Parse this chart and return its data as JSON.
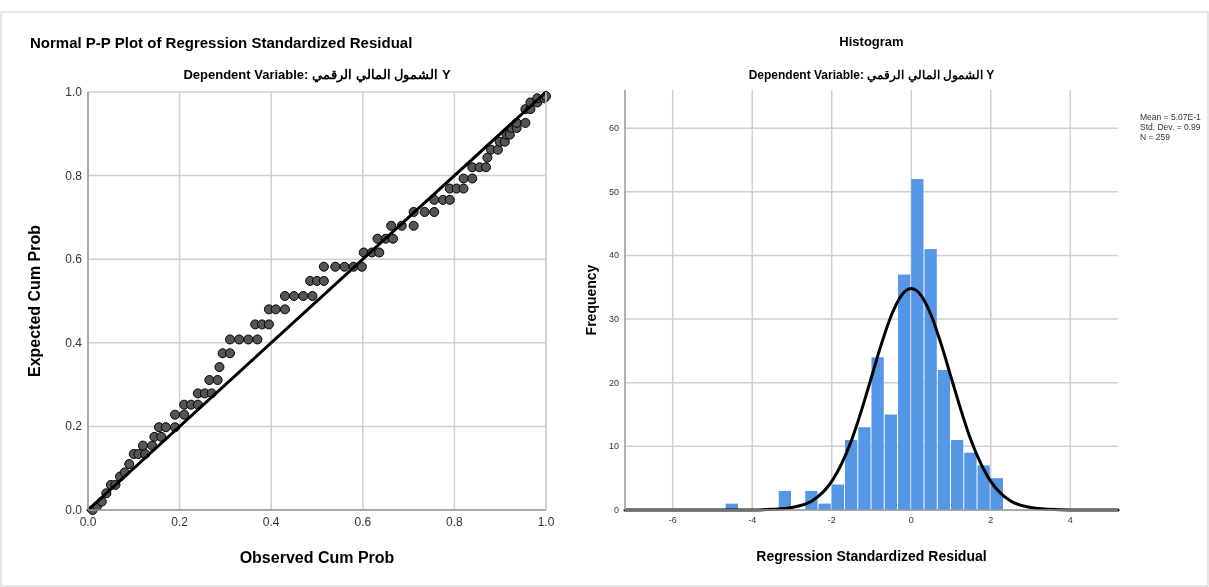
{
  "chart_data": [
    {
      "type": "scatter",
      "title": "Normal P-P Plot of Regression Standardized Residual",
      "subtitle": "Dependent Variable: الشمول المالي الرقمي Y",
      "xlabel": "Observed Cum Prob",
      "ylabel": "Expected Cum Prob",
      "xlim": [
        0,
        1
      ],
      "ylim": [
        0,
        1
      ],
      "xticks": [
        {
          "value": 0,
          "label": "0.0"
        },
        {
          "value": 0.2,
          "label": "0.2"
        },
        {
          "value": 0.4,
          "label": "0.4"
        },
        {
          "value": 0.6,
          "label": "0.6"
        },
        {
          "value": 0.8,
          "label": "0.8"
        },
        {
          "value": 1,
          "label": "1.0"
        }
      ],
      "yticks": [
        {
          "value": 0,
          "label": "0.0"
        },
        {
          "value": 0.2,
          "label": "0.2"
        },
        {
          "value": 0.4,
          "label": "0.4"
        },
        {
          "value": 0.6,
          "label": "0.6"
        },
        {
          "value": 0.8,
          "label": "0.8"
        },
        {
          "value": 1,
          "label": "1.0"
        }
      ],
      "grid": true,
      "series": [
        {
          "marker": "circle",
          "color": "#555555",
          "x": [
            0.01,
            0.02,
            0.03,
            0.04,
            0.05,
            0.06,
            0.07,
            0.08,
            0.09,
            0.1,
            0.11,
            0.125,
            0.12,
            0.14,
            0.145,
            0.16,
            0.155,
            0.17,
            0.19,
            0.19,
            0.21,
            0.21,
            0.225,
            0.24,
            0.24,
            0.255,
            0.27,
            0.265,
            0.283,
            0.287,
            0.294,
            0.31,
            0.31,
            0.33,
            0.35,
            0.37,
            0.365,
            0.38,
            0.395,
            0.395,
            0.41,
            0.43,
            0.43,
            0.45,
            0.47,
            0.49,
            0.485,
            0.5,
            0.515,
            0.515,
            0.54,
            0.56,
            0.58,
            0.598,
            0.602,
            0.62,
            0.636,
            0.632,
            0.65,
            0.666,
            0.662,
            0.685,
            0.711,
            0.711,
            0.735,
            0.756,
            0.756,
            0.775,
            0.79,
            0.79,
            0.805,
            0.82,
            0.82,
            0.839,
            0.839,
            0.855,
            0.869,
            0.872,
            0.88,
            0.895,
            0.899,
            0.91,
            0.914,
            0.921,
            0.925,
            0.936,
            0.936,
            0.955,
            0.955,
            0.966,
            0.966,
            0.981,
            0.981,
            0.996,
            1.0
          ],
          "values": [
            0.0,
            0.01,
            0.02,
            0.04,
            0.06,
            0.06,
            0.08,
            0.09,
            0.11,
            0.134,
            0.134,
            0.134,
            0.154,
            0.154,
            0.175,
            0.175,
            0.198,
            0.198,
            0.198,
            0.228,
            0.228,
            0.252,
            0.252,
            0.252,
            0.279,
            0.279,
            0.279,
            0.311,
            0.311,
            0.342,
            0.375,
            0.375,
            0.408,
            0.408,
            0.408,
            0.408,
            0.444,
            0.444,
            0.444,
            0.48,
            0.48,
            0.48,
            0.512,
            0.512,
            0.512,
            0.512,
            0.548,
            0.548,
            0.548,
            0.582,
            0.582,
            0.582,
            0.582,
            0.582,
            0.616,
            0.616,
            0.616,
            0.649,
            0.649,
            0.649,
            0.68,
            0.68,
            0.68,
            0.713,
            0.713,
            0.713,
            0.742,
            0.742,
            0.742,
            0.769,
            0.769,
            0.769,
            0.793,
            0.793,
            0.82,
            0.82,
            0.82,
            0.843,
            0.862,
            0.862,
            0.881,
            0.881,
            0.898,
            0.898,
            0.914,
            0.914,
            0.926,
            0.926,
            0.959,
            0.959,
            0.975,
            0.975,
            0.985,
            0.985,
            0.99
          ]
        },
        {
          "type": "line",
          "color": "#000000",
          "x": [
            0,
            1
          ],
          "values": [
            0,
            1
          ]
        }
      ]
    },
    {
      "type": "histogram",
      "title": "Histogram",
      "subtitle": "Dependent Variable: الشمول المالي الرقمي Y",
      "xlabel": "Regression Standardized Residual",
      "ylabel": "Frequency",
      "annotations": [
        "Mean = 5.07E-1",
        "Std. Dev. = 0.99",
        "N = 259"
      ],
      "xlim": [
        -7.2,
        5.2
      ],
      "ylim": [
        0,
        66
      ],
      "xticks": [
        -6,
        -4,
        -2,
        0,
        2,
        4
      ],
      "yticks": [
        0,
        10,
        20,
        30,
        40,
        50,
        60
      ],
      "grid": true,
      "bins": [
        -4.667,
        -4.333,
        -4,
        -3.667,
        -3.333,
        -3,
        -2.667,
        -2.333,
        -2,
        -1.667,
        -1.333,
        -1,
        -0.667,
        -0.333,
        0,
        0.333,
        0.667,
        1,
        1.333,
        1.667,
        2,
        2.333
      ],
      "series": [
        {
          "color": "#5596e6",
          "values": [
            1,
            0,
            0,
            0,
            3,
            0,
            3,
            1,
            4,
            11,
            13,
            24,
            15,
            37,
            52,
            41,
            22,
            11,
            9,
            7,
            5
          ]
        },
        {
          "type": "line",
          "color": "#000000",
          "x": [
            -7.2,
            -4,
            -3.5,
            -3,
            -2.5,
            -2,
            -1.75,
            -1.5,
            -1.25,
            -1,
            -0.75,
            -0.5,
            -0.25,
            0,
            0.25,
            0.5,
            0.75,
            1,
            1.25,
            1.5,
            1.75,
            2,
            2.5,
            3,
            3.5,
            4,
            5.2
          ],
          "values": [
            0,
            0,
            0.1,
            0.4,
            1.4,
            4.5,
            7.3,
            11.0,
            15.7,
            20.9,
            26.1,
            30.6,
            33.7,
            34.8,
            33.7,
            30.6,
            26.1,
            20.9,
            15.7,
            11.0,
            7.3,
            4.5,
            1.4,
            0.4,
            0.1,
            0,
            0
          ]
        }
      ]
    }
  ]
}
